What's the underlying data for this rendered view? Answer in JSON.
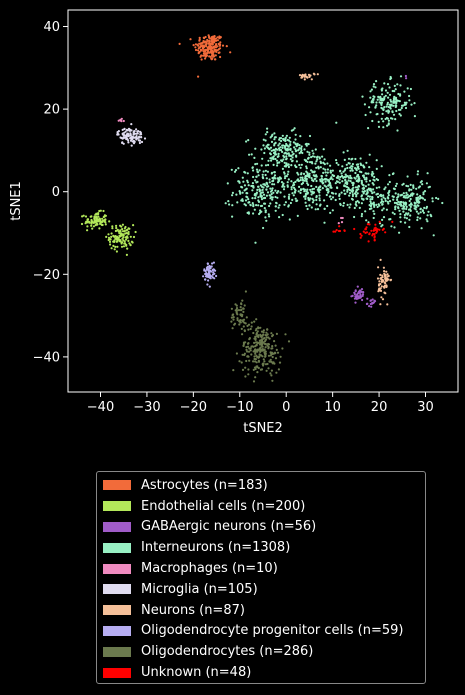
{
  "chart_data": {
    "type": "scatter",
    "xlabel": "tSNE2",
    "ylabel": "tSNE1",
    "xlim": [
      -47,
      37
    ],
    "ylim": [
      -48.5,
      44
    ],
    "xticks": [
      -40,
      -30,
      -20,
      -10,
      0,
      10,
      20,
      30
    ],
    "yticks": [
      -40,
      -20,
      0,
      20,
      40
    ],
    "grid": false,
    "legend_position": "below",
    "series": [
      {
        "name": "Astrocytes (n=183)",
        "color": "#f26b3a",
        "clusters": [
          {
            "cx": -16.5,
            "cy": 35,
            "sx": 1.6,
            "sy": 1.7,
            "n": 183
          }
        ]
      },
      {
        "name": "Endothelial cells (n=200)",
        "color": "#b3e85a",
        "clusters": [
          {
            "cx": -41,
            "cy": -7,
            "sx": 1.2,
            "sy": 1.0,
            "n": 90
          },
          {
            "cx": -35.5,
            "cy": -11,
            "sx": 1.3,
            "sy": 1.5,
            "n": 110
          }
        ]
      },
      {
        "name": "GABAergic neurons (n=56)",
        "color": "#a05cc8",
        "clusters": [
          {
            "cx": 15.5,
            "cy": -25,
            "sx": 0.7,
            "sy": 0.8,
            "n": 40
          },
          {
            "cx": 18.5,
            "cy": -27,
            "sx": 0.5,
            "sy": 0.5,
            "n": 14
          },
          {
            "cx": 26,
            "cy": 28,
            "sx": 0.2,
            "sy": 0.2,
            "n": 2
          }
        ]
      },
      {
        "name": "Interneurons (n=1308)",
        "color": "#98f0c4",
        "clusters": [
          {
            "cx": -5,
            "cy": 0,
            "sx": 3.2,
            "sy": 3.2,
            "n": 220
          },
          {
            "cx": -1,
            "cy": 10,
            "sx": 3.0,
            "sy": 2.2,
            "n": 170
          },
          {
            "cx": 5,
            "cy": 3,
            "sx": 3.5,
            "sy": 4.0,
            "n": 260
          },
          {
            "cx": 14,
            "cy": 3,
            "sx": 2.8,
            "sy": 3.0,
            "n": 200
          },
          {
            "cx": 22,
            "cy": 21.5,
            "sx": 2.5,
            "sy": 2.5,
            "n": 160
          },
          {
            "cx": 27,
            "cy": -2.5,
            "sx": 2.3,
            "sy": 2.8,
            "n": 170
          },
          {
            "cx": 19,
            "cy": -1,
            "sx": 2.5,
            "sy": 3.0,
            "n": 128
          }
        ]
      },
      {
        "name": "Macrophages (n=10)",
        "color": "#f08bc0",
        "clusters": [
          {
            "cx": -35.5,
            "cy": 17.5,
            "sx": 0.4,
            "sy": 0.4,
            "n": 6
          },
          {
            "cx": 12,
            "cy": -7,
            "sx": 0.6,
            "sy": 0.6,
            "n": 4
          }
        ]
      },
      {
        "name": "Microglia (n=105)",
        "color": "#e0dcf0",
        "clusters": [
          {
            "cx": -33.5,
            "cy": 13.5,
            "sx": 1.4,
            "sy": 1.0,
            "n": 105
          }
        ]
      },
      {
        "name": "Neurons (n=87)",
        "color": "#f5c09a",
        "clusters": [
          {
            "cx": 21,
            "cy": -22,
            "sx": 0.6,
            "sy": 2.0,
            "n": 65
          },
          {
            "cx": 4.5,
            "cy": 28,
            "sx": 0.8,
            "sy": 0.4,
            "n": 22
          }
        ]
      },
      {
        "name": "Oligodendrocyte progenitor cells (n=59)",
        "color": "#b7aef2",
        "clusters": [
          {
            "cx": -16.5,
            "cy": -19.5,
            "sx": 0.6,
            "sy": 1.2,
            "n": 59
          }
        ]
      },
      {
        "name": "Oligodendrocytes (n=286)",
        "color": "#6b7a4e",
        "clusters": [
          {
            "cx": -5.5,
            "cy": -38,
            "sx": 2.2,
            "sy": 3.0,
            "n": 230
          },
          {
            "cx": -10,
            "cy": -30,
            "sx": 1.0,
            "sy": 2.0,
            "n": 56
          }
        ]
      },
      {
        "name": "Unknown (n=48)",
        "color": "#ff0000",
        "clusters": [
          {
            "cx": 18.5,
            "cy": -9.5,
            "sx": 1.2,
            "sy": 1.0,
            "n": 40
          },
          {
            "cx": 11,
            "cy": -9,
            "sx": 0.8,
            "sy": 0.6,
            "n": 8
          }
        ]
      }
    ]
  }
}
